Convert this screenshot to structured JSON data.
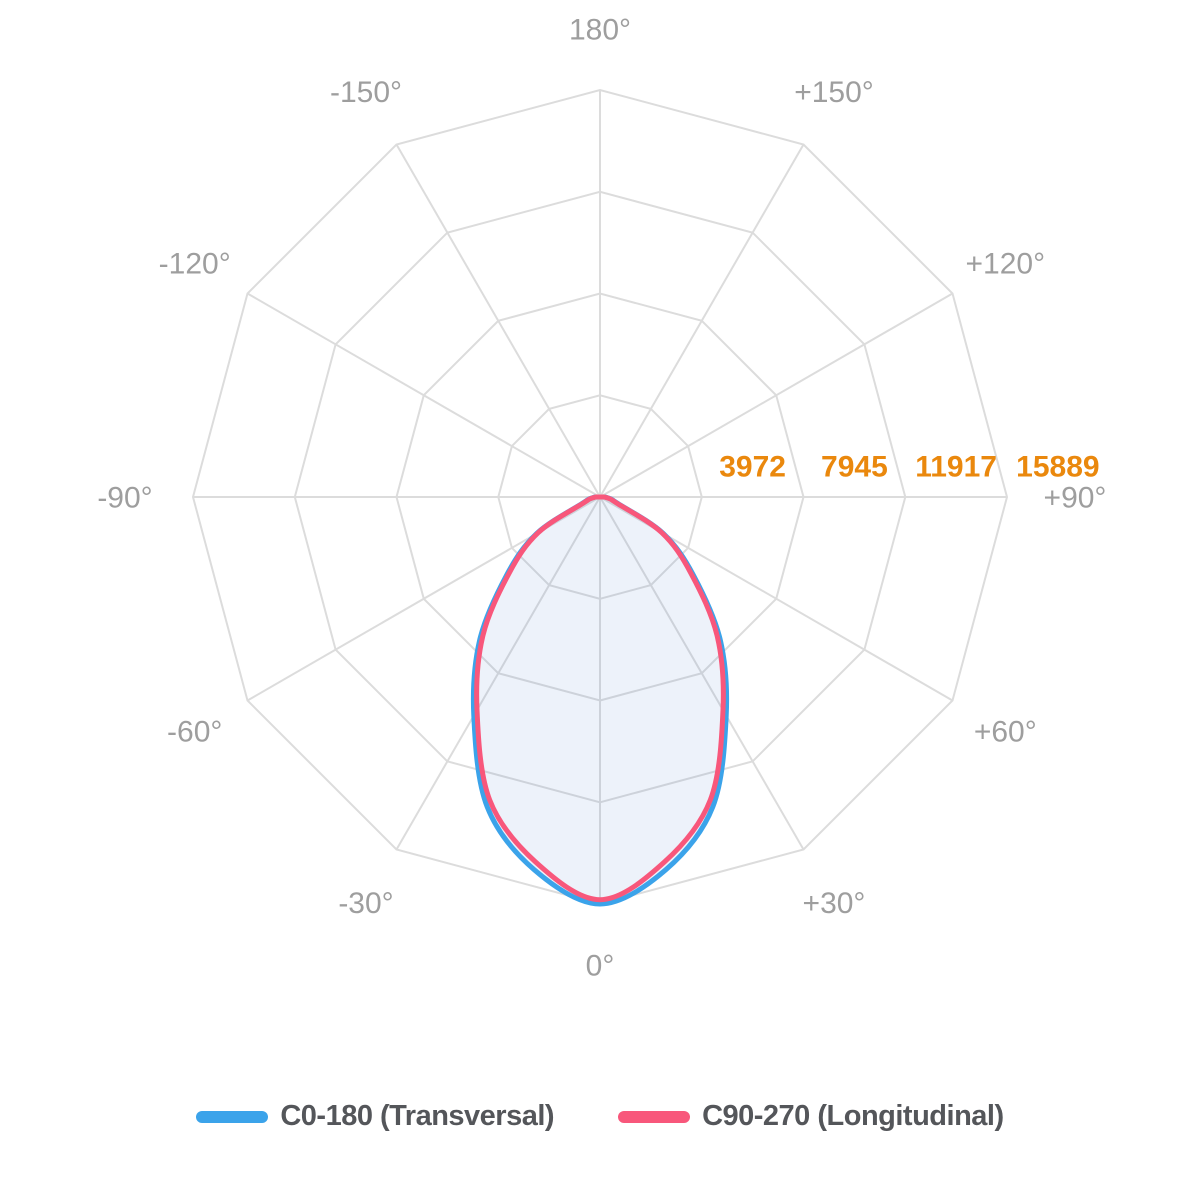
{
  "chart_data": {
    "type": "line",
    "variant": "polar-photometric-intensity-diagram",
    "angle_axis": {
      "spoke_step_deg": 30,
      "label_color": "#9e9e9e",
      "tick_labels": [
        {
          "angle_deg": 180,
          "label": "180°"
        },
        {
          "angle_deg": -150,
          "label": "-150°"
        },
        {
          "angle_deg": 150,
          "label": "+150°"
        },
        {
          "angle_deg": -120,
          "label": "-120°"
        },
        {
          "angle_deg": 120,
          "label": "+120°"
        },
        {
          "angle_deg": -90,
          "label": "-90°"
        },
        {
          "angle_deg": 90,
          "label": "+90°"
        },
        {
          "angle_deg": -60,
          "label": "-60°"
        },
        {
          "angle_deg": 60,
          "label": "+60°"
        },
        {
          "angle_deg": -30,
          "label": "-30°"
        },
        {
          "angle_deg": 30,
          "label": "+30°"
        },
        {
          "angle_deg": 0,
          "label": "0°"
        }
      ]
    },
    "radial_axis": {
      "max": 15889,
      "tick_values": [
        3972,
        7945,
        11917,
        15889
      ],
      "tick_labels": [
        "3972",
        "7945",
        "11917",
        "15889"
      ],
      "label_color": "#ea880d"
    },
    "grid": {
      "rings": 4,
      "line_color": "#dcdcdc"
    },
    "series": [
      {
        "name": "C0-180 (Transversal)",
        "color": "#3ba3ea",
        "area_fill": "rgba(75,125,205,0.10)",
        "gamma_deg": [
          -90,
          -80,
          -70,
          -60,
          -50,
          -40,
          -30,
          -20,
          -10,
          0,
          10,
          20,
          30,
          40,
          50,
          60,
          70,
          80,
          90
        ],
        "values": [
          200,
          420,
          750,
          2860,
          4770,
          7310,
          9850,
          12870,
          14780,
          15889,
          14780,
          12870,
          9850,
          7310,
          4770,
          2860,
          750,
          420,
          200
        ]
      },
      {
        "name": "C90-270 (Longitudinal)",
        "color": "#f8577b",
        "area_fill": "none",
        "gamma_deg": [
          -90,
          -80,
          -70,
          -60,
          -50,
          -40,
          -30,
          -20,
          -10,
          0,
          10,
          20,
          30,
          40,
          50,
          60,
          70,
          80,
          90
        ],
        "values": [
          170,
          380,
          690,
          2780,
          4640,
          7130,
          9600,
          12590,
          14470,
          15720,
          14470,
          12590,
          9600,
          7130,
          4640,
          2780,
          690,
          380,
          170
        ]
      }
    ],
    "legend": {
      "position": "bottom",
      "entries": [
        {
          "label": "C0-180 (Transversal)",
          "color": "#3ba3ea"
        },
        {
          "label": "C90-270 (Longitudinal)",
          "color": "#f8577b"
        }
      ]
    }
  }
}
